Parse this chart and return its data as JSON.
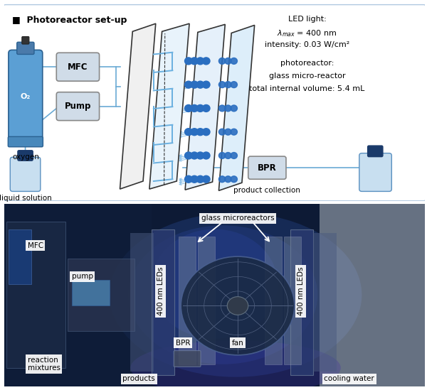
{
  "bg_color": "#ffffff",
  "title": "■  Photoreactor set-up",
  "led_text_line1": "LED light:",
  "led_text_line2": "λ_max = 400 nm",
  "led_text_line3": "intensity: 0.03 W/cm²",
  "led_text_line4": "photoreactor:",
  "led_text_line5": "glass micro-reactor",
  "led_text_line6": "total internal volume: 5.4 mL",
  "schematic": {
    "cylinder_body_color": "#5b9fd4",
    "cylinder_edge_color": "#2a6090",
    "cylinder_valve_color": "#444444",
    "o2_text_color": "white",
    "mfc_fill": "#d0dce8",
    "mfc_edge": "#888888",
    "pump_fill": "#d0dce8",
    "pump_edge": "#888888",
    "bottle_fill": "#c8dff0",
    "bottle_cap": "#1a3a6a",
    "bottle_edge": "#5a90c0",
    "panel1_fill": "#f0f0f0",
    "panel1_edge": "#333333",
    "panel2_fill": "#e8f3fb",
    "panel2_edge": "#333333",
    "panel3_fill": "#e5f0fa",
    "panel3_edge": "#333333",
    "panel4_fill": "#ddeefa",
    "panel4_edge": "#333333",
    "serpentine_color": "#6ab0e0",
    "led_dot_color": "#2a6ec0",
    "ray_color": "#8ac0e8",
    "bpr_fill": "#d0dce8",
    "bpr_edge": "#888888",
    "line_color": "#6aaad4",
    "line_width": 1.2
  },
  "photo": {
    "bg_dark": "#0d1a35",
    "bg_mid": "#1a2d55",
    "left_panel": "#162240",
    "led_panel_color": "#263d70",
    "fan_color": "#1e3060",
    "fan_edge": "#607090",
    "white_box_fill": "white",
    "white_box_edge": "white",
    "label_color": "black",
    "arrow_color": "white"
  }
}
